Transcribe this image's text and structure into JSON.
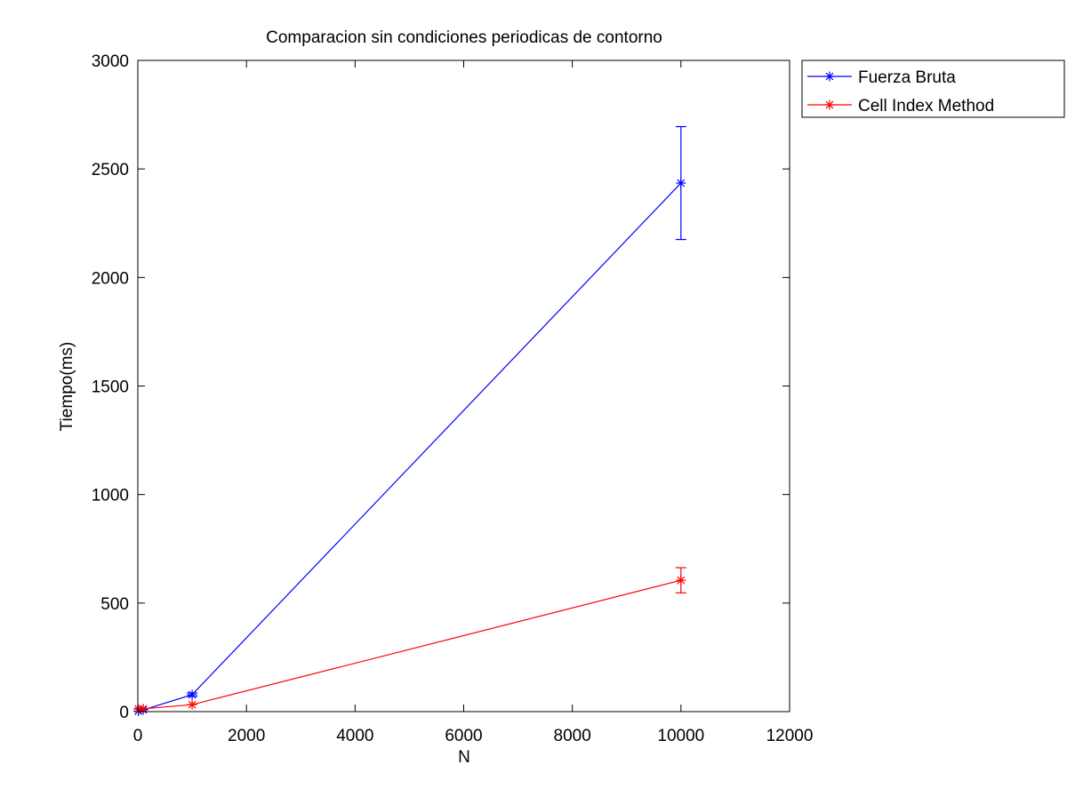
{
  "chart_data": {
    "type": "line",
    "title": "Comparacion sin condiciones periodicas de contorno",
    "xlabel": "N",
    "ylabel": "Tiempo(ms)",
    "xlim": [
      0,
      12000
    ],
    "ylim": [
      0,
      3000
    ],
    "xticks": [
      0,
      2000,
      4000,
      6000,
      8000,
      10000,
      12000
    ],
    "yticks": [
      0,
      500,
      1000,
      1500,
      2000,
      2500,
      3000
    ],
    "xtick_labels": [
      "0",
      "2000",
      "4000",
      "6000",
      "8000",
      "10000",
      "12000"
    ],
    "ytick_labels": [
      "0",
      "500",
      "1000",
      "1500",
      "2000",
      "2500",
      "3000"
    ],
    "grid": false,
    "legend_position": "outside-top-right",
    "series": [
      {
        "name": "Fuerza Bruta",
        "color": "#0000ff",
        "marker": "asterisk",
        "x": [
          10,
          100,
          1000,
          10000
        ],
        "y": [
          2,
          8,
          78,
          2435
        ],
        "error": [
          null,
          null,
          8,
          260
        ]
      },
      {
        "name": "Cell Index Method",
        "color": "#ff0000",
        "marker": "asterisk",
        "x": [
          10,
          100,
          1000,
          10000
        ],
        "y": [
          12,
          13,
          32,
          605
        ],
        "error": [
          null,
          null,
          null,
          58
        ]
      }
    ]
  }
}
